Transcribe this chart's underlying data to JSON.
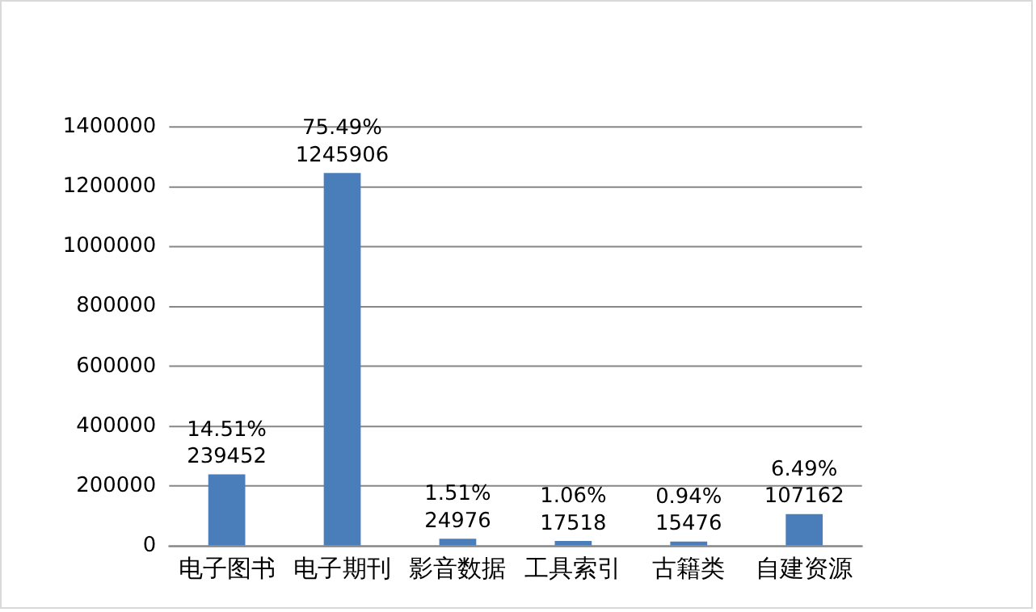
{
  "chart_data": {
    "type": "bar",
    "categories": [
      "电子图书",
      "电子期刊",
      "影音数据",
      "工具索引",
      "古籍类",
      "自建资源"
    ],
    "values": [
      239452,
      1245906,
      24976,
      17518,
      15476,
      107162
    ],
    "color": "#4a7ebb",
    "ylim": [
      0,
      1400000
    ],
    "yticks": [
      0,
      200000,
      400000,
      600000,
      800000,
      1000000,
      1200000,
      1400000
    ],
    "grid": "y",
    "legend": false,
    "data_labels": true,
    "annotations": [
      {
        "text": "14.51%",
        "x": "电子图书",
        "y": 239452
      },
      {
        "text": "75.49%",
        "x": "电子期刊",
        "y": 1245906
      },
      {
        "text": "1.51%",
        "x": "影音数据",
        "y": 24976
      },
      {
        "text": "1.06%",
        "x": "工具索引",
        "y": 17518
      },
      {
        "text": "0.94%",
        "x": "古籍类",
        "y": 15476
      },
      {
        "text": "6.49%",
        "x": "自建资源",
        "y": 107162
      }
    ]
  }
}
